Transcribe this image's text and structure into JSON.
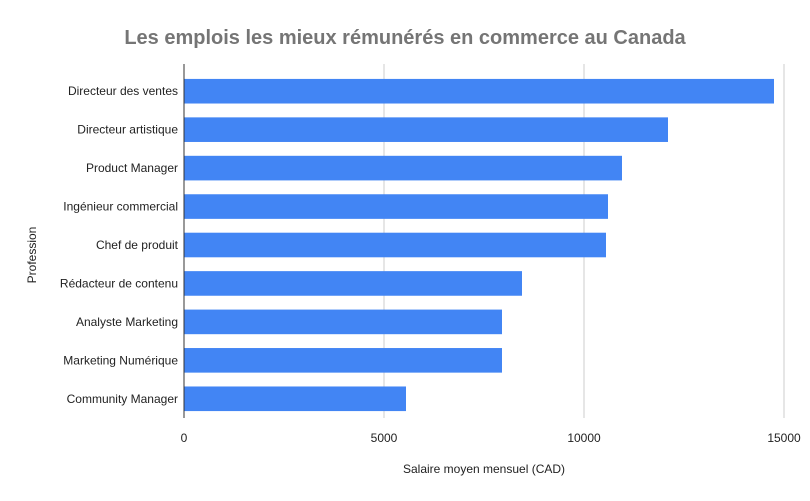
{
  "chart_data": {
    "type": "bar",
    "orientation": "horizontal",
    "title": "Les emplois les mieux rémunérés en commerce au Canada",
    "xlabel": "Salaire moyen mensuel (CAD)",
    "ylabel": "Profession",
    "categories": [
      "Directeur des ventes",
      "Directeur artistique",
      "Product Manager",
      "Ingénieur commercial",
      "Chef de produit",
      "Rédacteur de contenu",
      "Analyste Marketing",
      "Marketing Numérique",
      "Community Manager"
    ],
    "values": [
      14750,
      12100,
      10950,
      10600,
      10550,
      8450,
      7950,
      7950,
      5550
    ],
    "xlim": [
      0,
      15000
    ],
    "xticks": [
      "0",
      "5000",
      "10000",
      "15000"
    ],
    "grid": true,
    "bar_color": "#4285f4",
    "legend": "none"
  }
}
